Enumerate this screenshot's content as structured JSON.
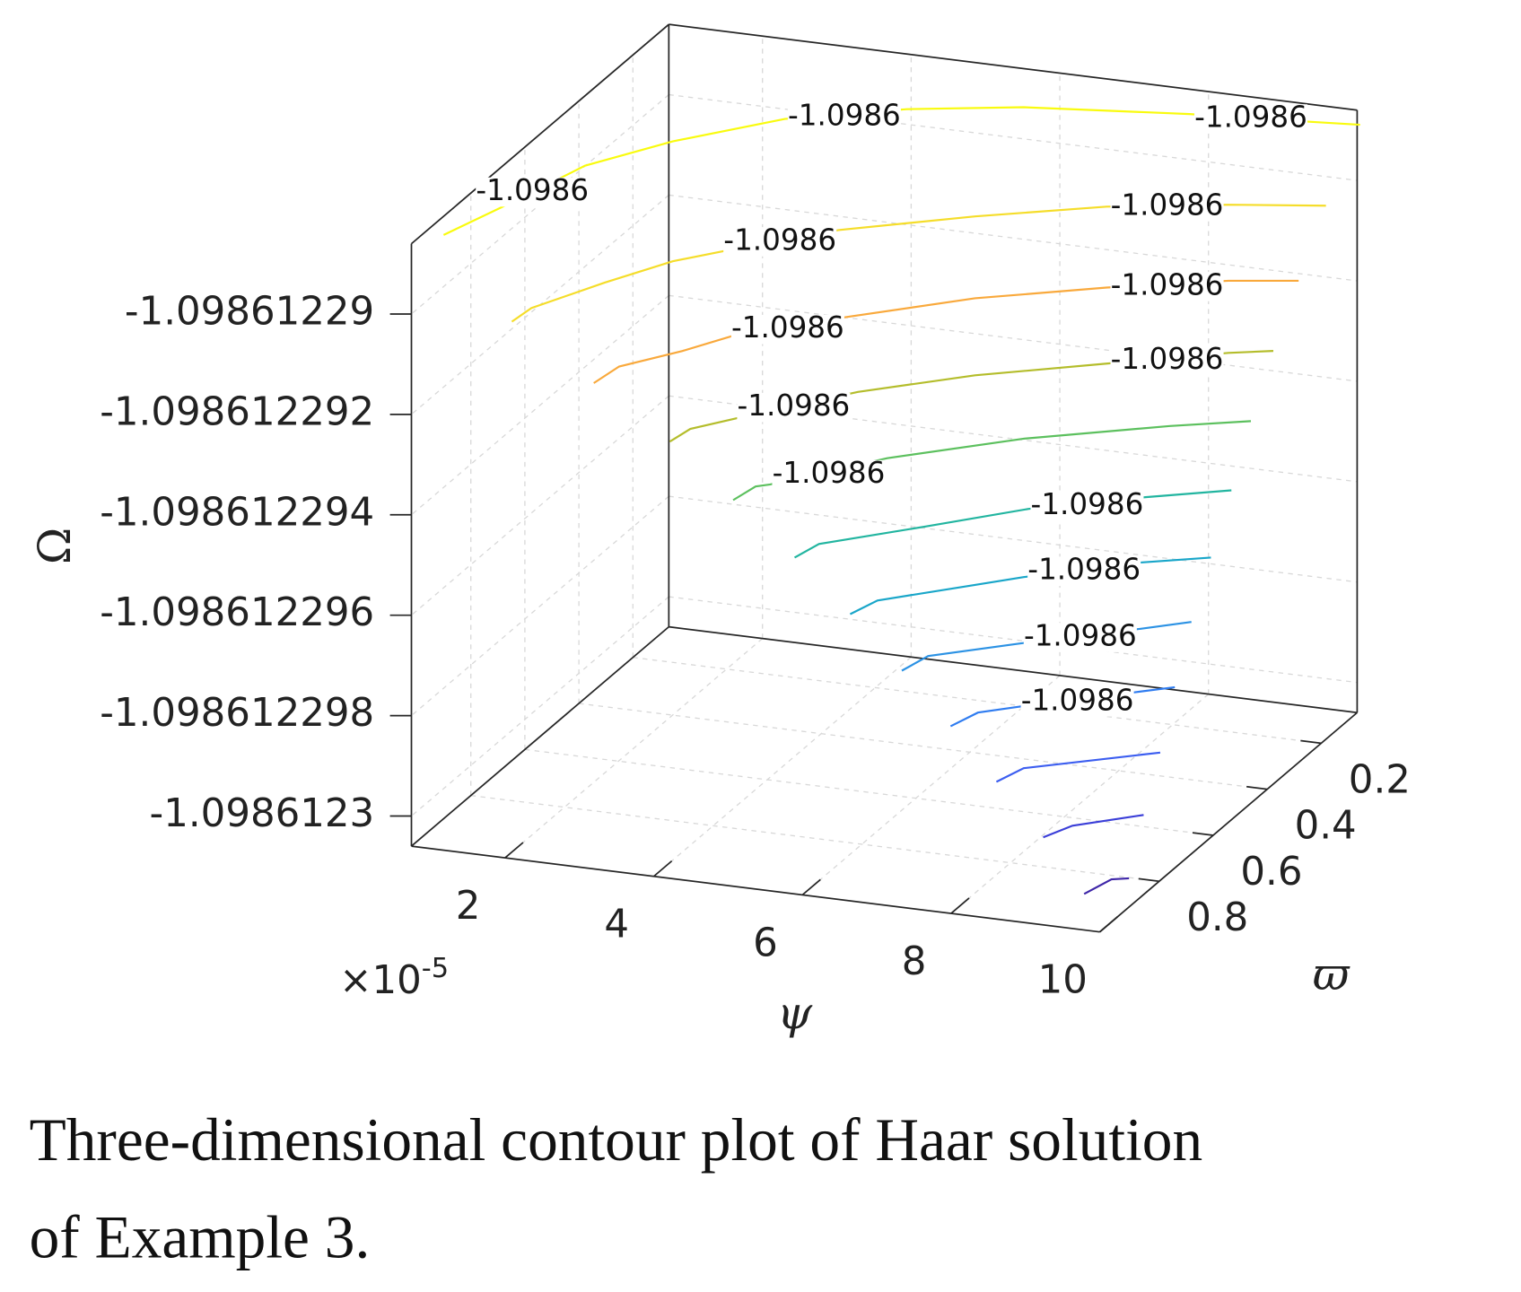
{
  "chart_data": {
    "type": "contour3d",
    "caption": [
      "Three-dimensional contour plot of Haar solution",
      "of Example 3."
    ],
    "xlabel": "ψ",
    "ylabel": "ϖ",
    "zlabel": "Ω",
    "x_multiplier": "×10",
    "x_exponent": "-5",
    "xlim": [
      7.4e-06,
      0.0001
    ],
    "xticks": [
      {
        "value": 2e-05,
        "label": "2"
      },
      {
        "value": 4e-05,
        "label": "4"
      },
      {
        "value": 6e-05,
        "label": "6"
      },
      {
        "value": 8e-05,
        "label": "8"
      },
      {
        "value": 0.0001,
        "label": "10"
      }
    ],
    "ylim": [
      0.067,
      1.02
    ],
    "yticks": [
      0.2,
      0.4,
      0.6,
      0.8
    ],
    "zlim": [
      -1.0986123006,
      -1.0986122886
    ],
    "zticks": [
      -1.09861229,
      -1.098612292,
      -1.098612294,
      -1.098612296,
      -1.098612298,
      -1.0986123
    ],
    "grid": true,
    "levels": [
      -1.098612289,
      -1.09861229,
      -1.098612291,
      -1.098612292,
      -1.098612293,
      -1.098612294,
      -1.098612295,
      -1.098612296,
      -1.098612297,
      -1.098612298,
      -1.098612299,
      -1.0986123
    ],
    "level_colors": [
      "#f9fb0e",
      "#f5dd2a",
      "#f9a93c",
      "#b4bd2b",
      "#5cc05e",
      "#22b5a0",
      "#19a6c9",
      "#2c92e4",
      "#2f7cf0",
      "#3c5ef0",
      "#3b3fd8",
      "#3e26a8"
    ],
    "value_labels": [
      "-1.0986",
      "-1.0986",
      "-1.0986",
      "-1.0986",
      "-1.0986",
      "-1.0986",
      "-1.0986",
      "-1.0986",
      "-1.0986",
      null,
      null,
      null
    ]
  }
}
